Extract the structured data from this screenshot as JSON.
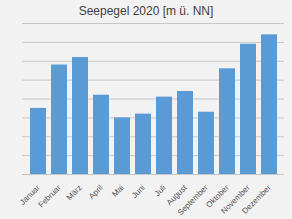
{
  "chart_data": {
    "type": "bar",
    "title": "Seepegel 2020 [m ü. NN]",
    "categories": [
      "Januar",
      "Februar",
      "März",
      "April",
      "Mai",
      "Juni",
      "Juli",
      "August",
      "September",
      "Oktober",
      "November",
      "Dezember"
    ],
    "values": [
      3.5,
      5.8,
      6.2,
      4.2,
      3.0,
      3.2,
      4.1,
      4.4,
      3.3,
      5.6,
      6.9,
      7.4
    ],
    "color": "#5B9BD5",
    "ylim": [
      0,
      8
    ],
    "yticks": [
      0,
      1,
      2,
      3,
      4,
      5,
      6,
      7,
      8
    ],
    "grid": true,
    "tick_labels": "x"
  }
}
